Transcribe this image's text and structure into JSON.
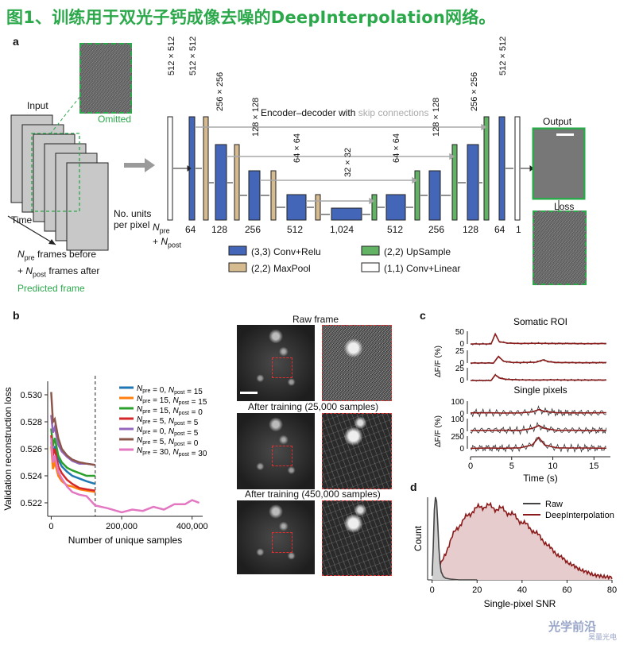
{
  "title": "图1、训练用于双光子钙成像去噪的DeepInterpolation网络。",
  "panel_a": {
    "label": "a",
    "input": "Input",
    "omitted": "Omitted",
    "time": "Time",
    "n_units": [
      "No. units",
      "per pixel"
    ],
    "n_frames_lines": [
      "frames before",
      "frames after"
    ],
    "predicted_frame": "Predicted frame",
    "n_pre": "N",
    "n_pre_sub": "pre",
    "n_post_sub": "post",
    "plus": "+",
    "encoder_title": "Encoder–decoder with",
    "skip_connections": "skip connections",
    "output": "Output",
    "loss": "Loss",
    "dims": [
      "512 × 512",
      "512 × 512",
      "256 × 256",
      "128 × 128",
      "64 × 64",
      "32 × 32",
      "64 × 64",
      "128 × 128",
      "256 × 256",
      "512 × 512"
    ],
    "units": [
      "64",
      "128",
      "256",
      "512",
      "1,024",
      "512",
      "256",
      "128",
      "64",
      "1"
    ],
    "legend": [
      "(3,3) Conv+Relu",
      "(2,2) MaxPool",
      "(2,2) UpSample",
      "(1,1) Conv+Linear"
    ],
    "colors": {
      "conv": "#4466b8",
      "pool": "#d7bb90",
      "up": "#62b364",
      "linear": "#ffffff",
      "green": "#2aa84a"
    }
  },
  "panel_b": {
    "label": "b",
    "raw_frame": "Raw frame",
    "after_25k": "After training (25,000 samples)",
    "after_450k": "After training (450,000 samples)"
  },
  "panel_c": {
    "label": "c",
    "somatic": "Somatic ROI",
    "single": "Single pixels"
  },
  "panel_d": {
    "label": "d"
  },
  "watermark": [
    "光学前沿",
    "昊量光电"
  ],
  "chart_data": [
    {
      "type": "line",
      "xlabel": "Number of unique samples",
      "ylabel": "Validation reconstruction loss",
      "xlim": [
        -10000,
        430000
      ],
      "ylim": [
        0.521,
        0.531
      ],
      "xticks": [
        0,
        200000,
        400000
      ],
      "xtick_labels": [
        "0",
        "200,000",
        "400,000"
      ],
      "yticks": [
        0.522,
        0.524,
        0.526,
        0.528,
        0.53
      ],
      "ytick_labels": [
        "0.522",
        "0.524",
        "0.526",
        "0.528",
        "0.530"
      ],
      "vline_x": 125000,
      "legend_placement": "right",
      "series": [
        {
          "name": "N pre = 0, N post = 15",
          "label_parts": [
            "0",
            "15"
          ],
          "color": "#1f77b4",
          "x": [
            0,
            5000,
            10000,
            20000,
            30000,
            45000,
            60000,
            80000,
            100000,
            125000
          ],
          "y": [
            0.5265,
            0.5255,
            0.5262,
            0.5252,
            0.5247,
            0.5243,
            0.524,
            0.5238,
            0.5236,
            0.5234
          ]
        },
        {
          "name": "N pre = 15, N post = 15",
          "label_parts": [
            "15",
            "15"
          ],
          "color": "#ff7f0e",
          "x": [
            0,
            5000,
            10000,
            20000,
            30000,
            45000,
            60000,
            80000,
            100000,
            125000
          ],
          "y": [
            0.5262,
            0.5245,
            0.525,
            0.524,
            0.5236,
            0.5233,
            0.5232,
            0.523,
            0.5229,
            0.5228
          ]
        },
        {
          "name": "N pre = 15, N post = 0",
          "label_parts": [
            "15",
            "0"
          ],
          "color": "#2ca02c",
          "x": [
            0,
            5000,
            10000,
            20000,
            30000,
            45000,
            60000,
            80000,
            100000,
            125000
          ],
          "y": [
            0.5275,
            0.5262,
            0.5268,
            0.5255,
            0.525,
            0.5246,
            0.5244,
            0.5242,
            0.524,
            0.524
          ]
        },
        {
          "name": "N pre = 5, N post = 5",
          "label_parts": [
            "5",
            "5"
          ],
          "color": "#d62728",
          "x": [
            0,
            5000,
            10000,
            20000,
            30000,
            45000,
            60000,
            80000,
            100000,
            125000
          ],
          "y": [
            0.527,
            0.5255,
            0.526,
            0.5247,
            0.5242,
            0.5237,
            0.5234,
            0.5231,
            0.523,
            0.5229
          ]
        },
        {
          "name": "N pre = 0, N post = 5",
          "label_parts": [
            "0",
            "5"
          ],
          "color": "#9467bd",
          "x": [
            0,
            5000,
            10000,
            20000,
            30000,
            45000,
            60000,
            80000,
            100000,
            125000
          ],
          "y": [
            0.5285,
            0.5272,
            0.5276,
            0.5263,
            0.5258,
            0.5254,
            0.5251,
            0.5249,
            0.5249,
            0.5248
          ]
        },
        {
          "name": "N pre = 5, N post = 0",
          "label_parts": [
            "5",
            "0"
          ],
          "color": "#8c564b",
          "x": [
            0,
            5000,
            10000,
            20000,
            30000,
            45000,
            60000,
            80000,
            100000,
            125000
          ],
          "y": [
            0.5302,
            0.528,
            0.5282,
            0.5268,
            0.526,
            0.5255,
            0.5252,
            0.525,
            0.5249,
            0.5248
          ]
        },
        {
          "name": "N pre = 30, N post = 30",
          "label_parts": [
            "30",
            "30"
          ],
          "color": "#e377c2",
          "x": [
            0,
            5000,
            10000,
            20000,
            30000,
            45000,
            60000,
            80000,
            100000,
            125000,
            160000,
            200000,
            230000,
            260000,
            290000,
            320000,
            350000,
            380000,
            400000,
            420000
          ],
          "y": [
            0.5268,
            0.525,
            0.5255,
            0.5243,
            0.5238,
            0.5232,
            0.5228,
            0.5226,
            0.5225,
            0.5218,
            0.5216,
            0.5213,
            0.5215,
            0.5214,
            0.5217,
            0.5215,
            0.5219,
            0.5219,
            0.5222,
            0.522
          ]
        }
      ]
    },
    {
      "type": "line",
      "title": "Somatic ROI",
      "ylabel": "ΔF/F (%)",
      "xlim": [
        0,
        17
      ],
      "yticks": [
        [
          "50",
          "0"
        ],
        [
          "25",
          "0"
        ],
        [
          "25",
          "0"
        ]
      ],
      "series": [
        {
          "name": "trace-1",
          "x": [
            0,
            2.5,
            3.0,
            3.5,
            4.5,
            6,
            8,
            10,
            12,
            14,
            16.5
          ],
          "y": [
            0,
            0,
            45,
            10,
            4,
            2,
            3,
            2,
            2,
            1,
            2
          ]
        },
        {
          "name": "trace-2",
          "x": [
            0,
            2.8,
            3.4,
            4.0,
            5,
            6,
            8,
            8.8,
            9.5,
            10.5,
            12,
            14,
            16.5
          ],
          "y": [
            0,
            0,
            30,
            8,
            3,
            2,
            4,
            14,
            6,
            2,
            2,
            1,
            2
          ]
        },
        {
          "name": "trace-3",
          "x": [
            0,
            2.5,
            3.0,
            3.6,
            4.4,
            6,
            8,
            10,
            12,
            14,
            16.5
          ],
          "y": [
            0,
            0,
            25,
            10,
            5,
            3,
            2,
            3,
            2,
            2,
            2
          ]
        }
      ]
    },
    {
      "type": "line",
      "title": "Single pixels",
      "xlabel": "Time (s)",
      "ylabel": "ΔF/F (%)",
      "xlim": [
        0,
        17
      ],
      "xticks": [
        0,
        5,
        10,
        15
      ],
      "yticks": [
        [
          "100",
          "0"
        ],
        [
          "100",
          "0"
        ],
        [
          "250",
          "0"
        ]
      ],
      "series": [
        {
          "name": "pixel-1 denoised",
          "x": [
            0,
            2,
            4,
            6,
            7.5,
            8.3,
            9,
            10.5,
            12,
            14,
            16.5
          ],
          "y": [
            10,
            12,
            8,
            10,
            20,
            45,
            25,
            12,
            10,
            10,
            12
          ]
        },
        {
          "name": "pixel-2 denoised",
          "x": [
            0,
            2,
            4,
            6,
            7.5,
            8.3,
            9,
            10.5,
            12,
            14,
            16.5
          ],
          "y": [
            8,
            10,
            12,
            9,
            30,
            60,
            30,
            10,
            12,
            9,
            10
          ]
        },
        {
          "name": "pixel-3 denoised",
          "x": [
            0,
            2,
            4,
            6,
            7.5,
            8.3,
            9,
            10.5,
            12,
            14,
            16.5
          ],
          "y": [
            5,
            8,
            6,
            10,
            40,
            120,
            40,
            10,
            8,
            8,
            6
          ]
        }
      ]
    },
    {
      "type": "area",
      "xlabel": "Single-pixel SNR",
      "ylabel": "Count",
      "xlim": [
        -2,
        80
      ],
      "xticks": [
        0,
        20,
        40,
        60,
        80
      ],
      "legend_placement": "top-right",
      "series": [
        {
          "name": "Raw",
          "color": "#444444",
          "x": [
            0,
            0.5,
            1,
            1.5,
            2,
            2.5,
            3,
            3.5,
            4,
            5,
            6,
            8,
            12,
            20
          ],
          "y": [
            0.05,
            0.4,
            0.85,
            1.0,
            0.95,
            0.7,
            0.4,
            0.2,
            0.1,
            0.04,
            0.02,
            0.01,
            0.0,
            0.0
          ]
        },
        {
          "name": "DeepInterpolation",
          "color": "#8b1a1a",
          "x": [
            0,
            2,
            4,
            6,
            8,
            10,
            12,
            14,
            16,
            18,
            20,
            22,
            24,
            26,
            28,
            30,
            32,
            34,
            36,
            38,
            40,
            44,
            48,
            52,
            56,
            60,
            64,
            68,
            72,
            76,
            80
          ],
          "y": [
            0.05,
            0.12,
            0.2,
            0.32,
            0.46,
            0.58,
            0.66,
            0.72,
            0.78,
            0.84,
            0.86,
            0.89,
            0.9,
            0.88,
            0.87,
            0.86,
            0.84,
            0.82,
            0.78,
            0.74,
            0.7,
            0.62,
            0.52,
            0.4,
            0.3,
            0.22,
            0.15,
            0.1,
            0.06,
            0.04,
            0.03
          ]
        }
      ]
    }
  ]
}
